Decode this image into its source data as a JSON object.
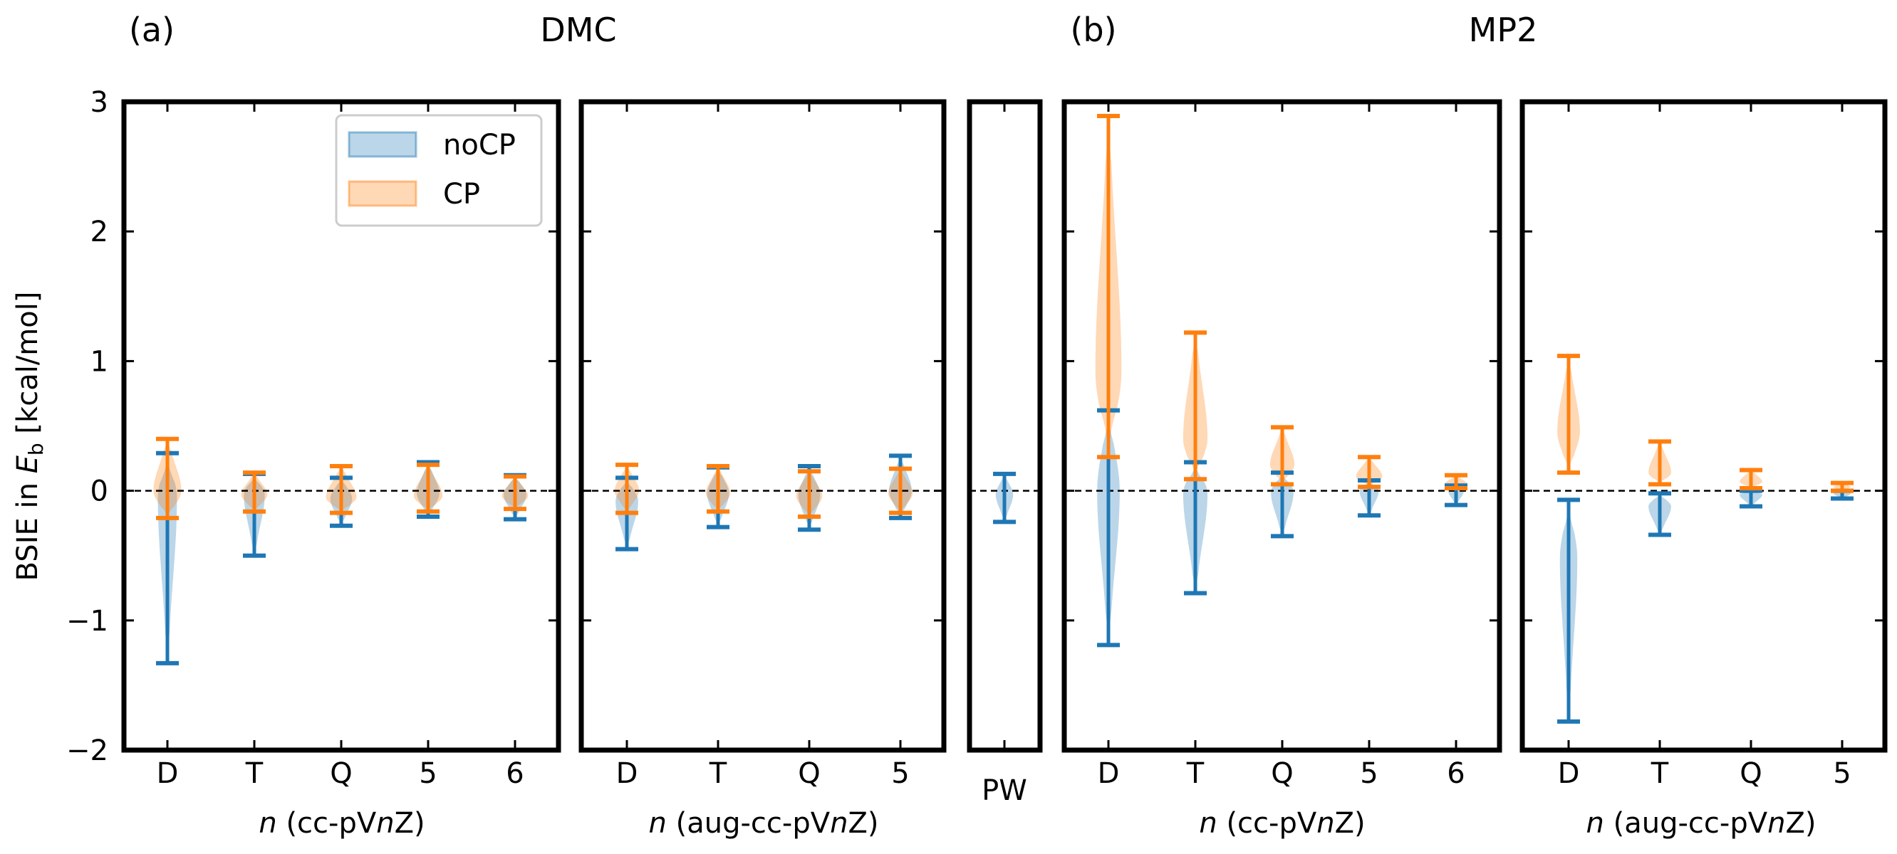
{
  "figure": {
    "ylabel_prefix": "BSIE in ",
    "ylabel_var": "E",
    "ylabel_sub": "b",
    "ylabel_suffix": " [kcal/mol]",
    "panel_a": {
      "letter": "(a)",
      "method": "DMC"
    },
    "panel_b": {
      "letter": "(b)",
      "method": "MP2"
    },
    "legend": [
      {
        "label": "noCP",
        "color": "#1f77b4"
      },
      {
        "label": "CP",
        "color": "#ff7f0e"
      }
    ],
    "y_tick_labels": [
      "−2",
      "−1",
      "0",
      "1",
      "2",
      "3"
    ],
    "pw_tick_label": "PW",
    "xlabel_cc": {
      "italic": "n",
      "pre": " (cc-pV",
      "italic2": "n",
      "post": "Z)"
    },
    "xlabel_aug": {
      "italic": "n",
      "pre": " (aug-cc-pV",
      "italic2": "n",
      "post": "Z)"
    }
  },
  "chart_data": [
    {
      "type": "violin",
      "panel": "DMC cc-pVnZ",
      "categories": [
        "D",
        "T",
        "Q",
        "5",
        "6"
      ],
      "ylim": [
        -2,
        3
      ],
      "reference_line": 0,
      "series": [
        {
          "name": "noCP",
          "color": "#1f77b4",
          "min": [
            -1.33,
            -0.5,
            -0.27,
            -0.2,
            -0.22
          ],
          "max": [
            0.29,
            0.13,
            0.1,
            0.22,
            0.12
          ],
          "center": [
            -0.05,
            -0.03,
            -0.06,
            -0.02,
            -0.03
          ],
          "halfwidth": [
            0.22,
            0.24,
            0.25,
            0.26,
            0.26
          ]
        },
        {
          "name": "CP",
          "color": "#ff7f0e",
          "min": [
            -0.21,
            -0.16,
            -0.17,
            -0.16,
            -0.14
          ],
          "max": [
            0.4,
            0.14,
            0.19,
            0.2,
            0.11
          ],
          "center": [
            0.0,
            -0.03,
            -0.05,
            -0.04,
            -0.04
          ],
          "halfwidth": [
            0.32,
            0.3,
            0.35,
            0.33,
            0.3
          ]
        }
      ]
    },
    {
      "type": "violin",
      "panel": "DMC aug-cc-pVnZ",
      "categories": [
        "D",
        "T",
        "Q",
        "5"
      ],
      "ylim": [
        -2,
        3
      ],
      "reference_line": 0,
      "series": [
        {
          "name": "noCP",
          "color": "#1f77b4",
          "min": [
            -0.45,
            -0.28,
            -0.3,
            -0.21
          ],
          "max": [
            0.1,
            0.18,
            0.19,
            0.27
          ],
          "center": [
            -0.08,
            -0.02,
            -0.03,
            0.0
          ],
          "halfwidth": [
            0.26,
            0.25,
            0.25,
            0.26
          ]
        },
        {
          "name": "CP",
          "color": "#ff7f0e",
          "min": [
            -0.17,
            -0.16,
            -0.2,
            -0.17
          ],
          "max": [
            0.2,
            0.19,
            0.15,
            0.17
          ],
          "center": [
            0.0,
            -0.02,
            -0.04,
            -0.02
          ],
          "halfwidth": [
            0.28,
            0.28,
            0.3,
            0.28
          ]
        }
      ]
    },
    {
      "type": "violin",
      "panel": "DMC PW",
      "categories": [
        "PW"
      ],
      "ylim": [
        -2,
        3
      ],
      "reference_line": 0,
      "series": [
        {
          "name": "noCP",
          "color": "#1f77b4",
          "min": [
            -0.24
          ],
          "max": [
            0.13
          ],
          "center": [
            -0.03
          ],
          "halfwidth": [
            0.2
          ]
        }
      ]
    },
    {
      "type": "violin",
      "panel": "MP2 cc-pVnZ",
      "categories": [
        "D",
        "T",
        "Q",
        "5",
        "6"
      ],
      "ylim": [
        -2,
        3
      ],
      "reference_line": 0,
      "series": [
        {
          "name": "noCP",
          "color": "#1f77b4",
          "min": [
            -1.19,
            -0.79,
            -0.35,
            -0.19,
            -0.11
          ],
          "max": [
            0.62,
            0.22,
            0.14,
            0.08,
            0.04
          ],
          "center": [
            0.0,
            -0.02,
            -0.01,
            0.0,
            0.0
          ],
          "halfwidth": [
            0.26,
            0.28,
            0.26,
            0.22,
            0.18
          ]
        },
        {
          "name": "CP",
          "color": "#ff7f0e",
          "min": [
            0.26,
            0.09,
            0.05,
            0.03,
            0.02
          ],
          "max": [
            2.89,
            1.22,
            0.49,
            0.26,
            0.12
          ],
          "center": [
            0.92,
            0.4,
            0.2,
            0.11,
            0.05
          ],
          "halfwidth": [
            0.3,
            0.28,
            0.28,
            0.3,
            0.26
          ]
        }
      ]
    },
    {
      "type": "violin",
      "panel": "MP2 aug-cc-pVnZ",
      "categories": [
        "D",
        "T",
        "Q",
        "5"
      ],
      "ylim": [
        -2,
        3
      ],
      "reference_line": 0,
      "series": [
        {
          "name": "noCP",
          "color": "#1f77b4",
          "min": [
            -1.78,
            -0.34,
            -0.12,
            -0.06
          ],
          "max": [
            -0.07,
            -0.02,
            0.0,
            0.0
          ],
          "center": [
            -0.52,
            -0.12,
            -0.03,
            -0.02
          ],
          "halfwidth": [
            0.2,
            0.26,
            0.26,
            0.2
          ]
        },
        {
          "name": "CP",
          "color": "#ff7f0e",
          "min": [
            0.14,
            0.05,
            0.02,
            0.0
          ],
          "max": [
            1.04,
            0.38,
            0.16,
            0.06
          ],
          "center": [
            0.46,
            0.14,
            0.07,
            0.03
          ],
          "halfwidth": [
            0.26,
            0.26,
            0.26,
            0.2
          ]
        }
      ]
    }
  ]
}
